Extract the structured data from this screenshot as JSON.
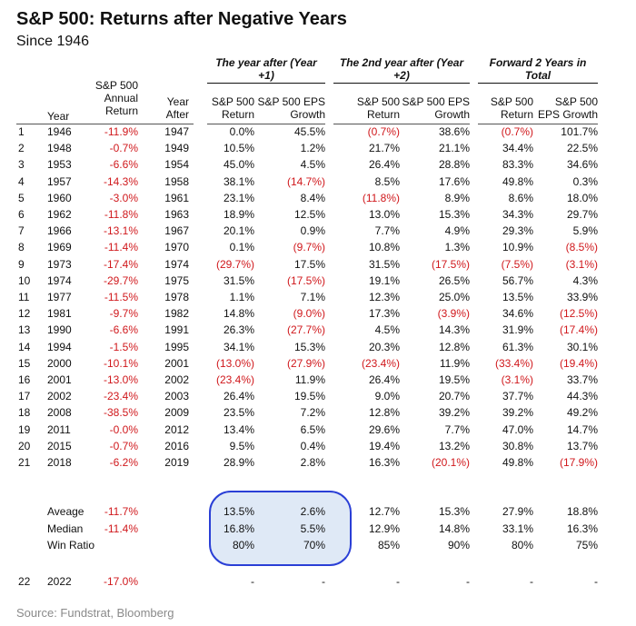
{
  "title": "S&P 500: Returns after Negative Years",
  "subtitle": "Since 1946",
  "groups": {
    "year_after": "The year after (Year +1)",
    "second_year": "The 2nd year after (Year +2)",
    "forward_two": "Forward 2 Years in Total"
  },
  "headers": {
    "year": "Year",
    "annual_line1": "S&P 500",
    "annual_line2": "Annual",
    "annual_line3": "Return",
    "year_after_line1": "Year",
    "year_after_line2": "After",
    "ret1_line1": "S&P 500",
    "ret1_line2": "Return",
    "eps1_line1": "S&P 500 EPS",
    "eps1_line2": "Growth",
    "ret2_line1": "S&P 500",
    "ret2_line2": "Return",
    "eps2_line1": "S&P 500 EPS",
    "eps2_line2": "Growth",
    "ret3_line1": "S&P 500",
    "ret3_line2": "Return",
    "eps3_line1": "S&P 500",
    "eps3_line2": "EPS Growth"
  },
  "rows": [
    [
      "1",
      "1946",
      "-11.9%",
      "1947",
      "0.0%",
      "45.5%",
      "(0.7%)",
      "38.6%",
      "(0.7%)",
      "101.7%"
    ],
    [
      "2",
      "1948",
      "-0.7%",
      "1949",
      "10.5%",
      "1.2%",
      "21.7%",
      "21.1%",
      "34.4%",
      "22.5%"
    ],
    [
      "3",
      "1953",
      "-6.6%",
      "1954",
      "45.0%",
      "4.5%",
      "26.4%",
      "28.8%",
      "83.3%",
      "34.6%"
    ],
    [
      "4",
      "1957",
      "-14.3%",
      "1958",
      "38.1%",
      "(14.7%)",
      "8.5%",
      "17.6%",
      "49.8%",
      "0.3%"
    ],
    [
      "5",
      "1960",
      "-3.0%",
      "1961",
      "23.1%",
      "8.4%",
      "(11.8%)",
      "8.9%",
      "8.6%",
      "18.0%"
    ],
    [
      "6",
      "1962",
      "-11.8%",
      "1963",
      "18.9%",
      "12.5%",
      "13.0%",
      "15.3%",
      "34.3%",
      "29.7%"
    ],
    [
      "7",
      "1966",
      "-13.1%",
      "1967",
      "20.1%",
      "0.9%",
      "7.7%",
      "4.9%",
      "29.3%",
      "5.9%"
    ],
    [
      "8",
      "1969",
      "-11.4%",
      "1970",
      "0.1%",
      "(9.7%)",
      "10.8%",
      "1.3%",
      "10.9%",
      "(8.5%)"
    ],
    [
      "9",
      "1973",
      "-17.4%",
      "1974",
      "(29.7%)",
      "17.5%",
      "31.5%",
      "(17.5%)",
      "(7.5%)",
      "(3.1%)"
    ],
    [
      "10",
      "1974",
      "-29.7%",
      "1975",
      "31.5%",
      "(17.5%)",
      "19.1%",
      "26.5%",
      "56.7%",
      "4.3%"
    ],
    [
      "11",
      "1977",
      "-11.5%",
      "1978",
      "1.1%",
      "7.1%",
      "12.3%",
      "25.0%",
      "13.5%",
      "33.9%"
    ],
    [
      "12",
      "1981",
      "-9.7%",
      "1982",
      "14.8%",
      "(9.0%)",
      "17.3%",
      "(3.9%)",
      "34.6%",
      "(12.5%)"
    ],
    [
      "13",
      "1990",
      "-6.6%",
      "1991",
      "26.3%",
      "(27.7%)",
      "4.5%",
      "14.3%",
      "31.9%",
      "(17.4%)"
    ],
    [
      "14",
      "1994",
      "-1.5%",
      "1995",
      "34.1%",
      "15.3%",
      "20.3%",
      "12.8%",
      "61.3%",
      "30.1%"
    ],
    [
      "15",
      "2000",
      "-10.1%",
      "2001",
      "(13.0%)",
      "(27.9%)",
      "(23.4%)",
      "11.9%",
      "(33.4%)",
      "(19.4%)"
    ],
    [
      "16",
      "2001",
      "-13.0%",
      "2002",
      "(23.4%)",
      "11.9%",
      "26.4%",
      "19.5%",
      "(3.1%)",
      "33.7%"
    ],
    [
      "17",
      "2002",
      "-23.4%",
      "2003",
      "26.4%",
      "19.5%",
      "9.0%",
      "20.7%",
      "37.7%",
      "44.3%"
    ],
    [
      "18",
      "2008",
      "-38.5%",
      "2009",
      "23.5%",
      "7.2%",
      "12.8%",
      "39.2%",
      "39.2%",
      "49.2%"
    ],
    [
      "19",
      "2011",
      "-0.0%",
      "2012",
      "13.4%",
      "6.5%",
      "29.6%",
      "7.7%",
      "47.0%",
      "14.7%"
    ],
    [
      "20",
      "2015",
      "-0.7%",
      "2016",
      "9.5%",
      "0.4%",
      "19.4%",
      "13.2%",
      "30.8%",
      "13.7%"
    ],
    [
      "21",
      "2018",
      "-6.2%",
      "2019",
      "28.9%",
      "2.8%",
      "16.3%",
      "(20.1%)",
      "49.8%",
      "(17.9%)"
    ]
  ],
  "summary": [
    {
      "label": "Aveage",
      "annual": "-11.7%",
      "ret1": "13.5%",
      "eps1": "2.6%",
      "ret2": "12.7%",
      "eps2": "15.3%",
      "ret3": "27.9%",
      "eps3": "18.8%"
    },
    {
      "label": "Median",
      "annual": "-11.4%",
      "ret1": "16.8%",
      "eps1": "5.5%",
      "ret2": "12.9%",
      "eps2": "14.8%",
      "ret3": "33.1%",
      "eps3": "16.3%"
    },
    {
      "label": "Win Ratio",
      "annual": "",
      "ret1": "80%",
      "eps1": "70%",
      "ret2": "85%",
      "eps2": "90%",
      "ret3": "80%",
      "eps3": "75%"
    }
  ],
  "last_row": [
    "22",
    "2022",
    "-17.0%",
    "-",
    "-",
    "-",
    "-",
    "-",
    "-"
  ],
  "source": "Source: Fundstrat, Bloomberg",
  "colors": {
    "negative": "#d0181c",
    "highlight_border": "#2a3fd6",
    "highlight_fill": "#dfe9f6"
  }
}
